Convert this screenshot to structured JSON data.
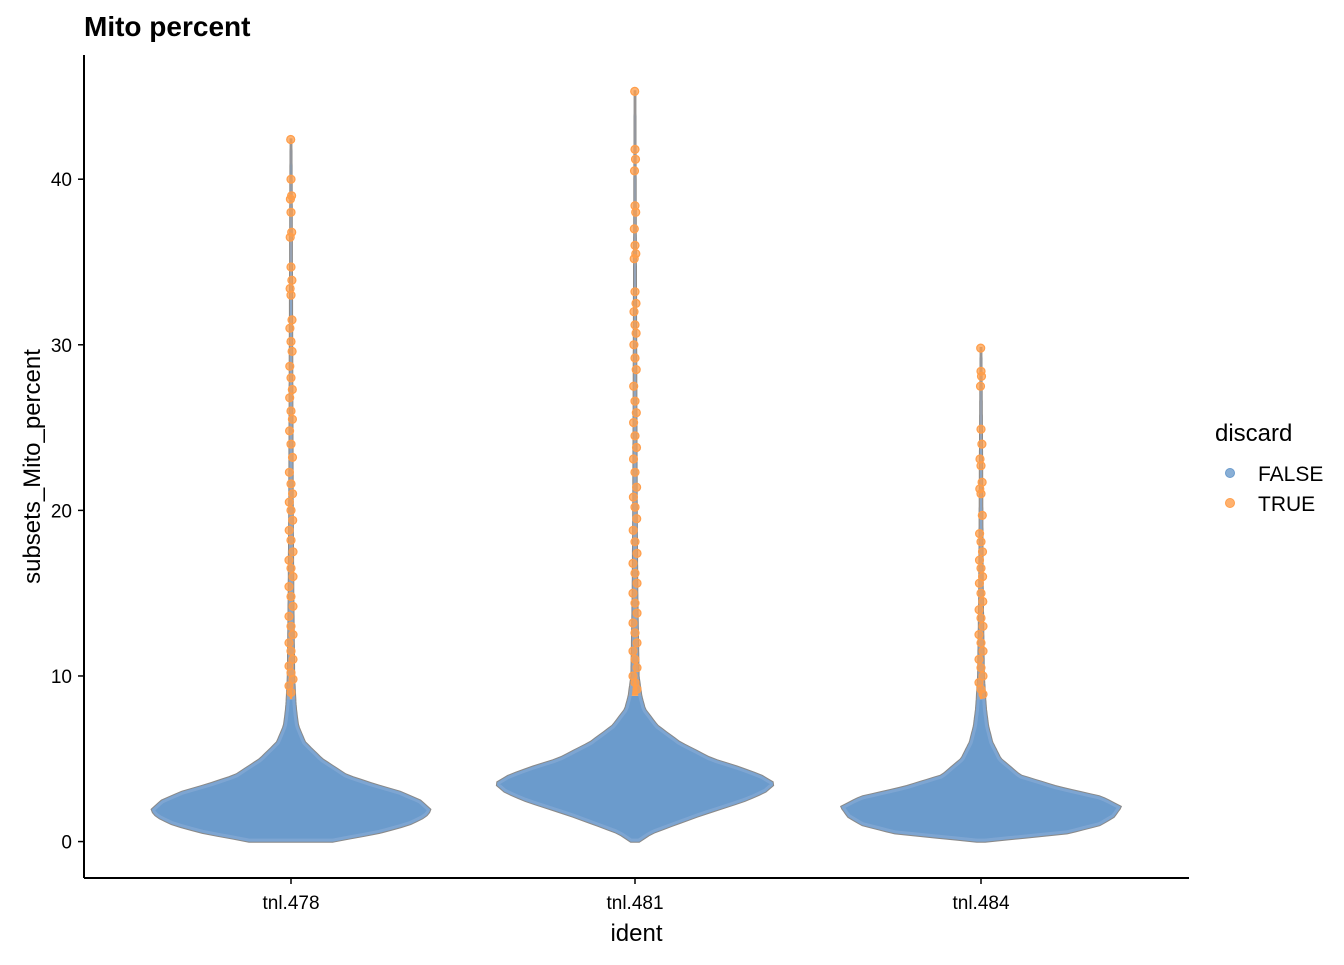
{
  "chart_data": {
    "type": "violin",
    "title": "Mito percent",
    "xlabel": "ident",
    "ylabel": "subsets_Mito_percent",
    "categories": [
      "tnl.478",
      "tnl.481",
      "tnl.484"
    ],
    "ylim": [
      -2.2,
      47.5
    ],
    "yticks": [
      0,
      10,
      20,
      30,
      40
    ],
    "grid": false,
    "legend": {
      "title": "discard",
      "position": "right",
      "entries": [
        {
          "label": "FALSE",
          "color": "#6b9bcc"
        },
        {
          "label": "TRUE",
          "color": "#ff9e4a"
        }
      ]
    },
    "threshold": {
      "tnl.478": 8.6,
      "tnl.481": 8.8,
      "tnl.484": 8.6
    },
    "violins": [
      {
        "category": "tnl.478",
        "max": 42.4,
        "profile": [
          [
            0.0,
            0.3
          ],
          [
            0.5,
            0.62
          ],
          [
            1.0,
            0.84
          ],
          [
            1.5,
            0.96
          ],
          [
            1.9,
            1.0
          ],
          [
            2.5,
            0.92
          ],
          [
            3.0,
            0.78
          ],
          [
            3.5,
            0.58
          ],
          [
            4.0,
            0.4
          ],
          [
            5.0,
            0.22
          ],
          [
            6.0,
            0.1
          ],
          [
            7.0,
            0.05
          ],
          [
            8.0,
            0.035
          ],
          [
            8.6,
            0.03
          ],
          [
            10.0,
            0.022
          ],
          [
            15.0,
            0.016
          ],
          [
            20.0,
            0.012
          ],
          [
            25.0,
            0.01
          ],
          [
            30.0,
            0.008
          ],
          [
            35.0,
            0.006
          ],
          [
            40.0,
            0.004
          ],
          [
            42.4,
            0.002
          ]
        ]
      },
      {
        "category": "tnl.481",
        "max": 45.3,
        "profile": [
          [
            0.0,
            0.03
          ],
          [
            0.5,
            0.12
          ],
          [
            1.0,
            0.28
          ],
          [
            1.5,
            0.44
          ],
          [
            2.0,
            0.62
          ],
          [
            2.5,
            0.8
          ],
          [
            3.0,
            0.93
          ],
          [
            3.5,
            1.0
          ],
          [
            4.0,
            0.9
          ],
          [
            4.5,
            0.74
          ],
          [
            5.0,
            0.55
          ],
          [
            6.0,
            0.32
          ],
          [
            7.0,
            0.16
          ],
          [
            8.0,
            0.07
          ],
          [
            8.8,
            0.045
          ],
          [
            10.0,
            0.025
          ],
          [
            15.0,
            0.016
          ],
          [
            20.0,
            0.012
          ],
          [
            25.0,
            0.01
          ],
          [
            30.0,
            0.008
          ],
          [
            35.0,
            0.006
          ],
          [
            40.0,
            0.004
          ],
          [
            45.3,
            0.002
          ]
        ]
      },
      {
        "category": "tnl.484",
        "max": 29.8,
        "profile": [
          [
            0.0,
            0.03
          ],
          [
            0.5,
            0.62
          ],
          [
            1.0,
            0.85
          ],
          [
            1.5,
            0.95
          ],
          [
            2.1,
            1.0
          ],
          [
            2.7,
            0.86
          ],
          [
            3.3,
            0.55
          ],
          [
            4.0,
            0.28
          ],
          [
            5.0,
            0.14
          ],
          [
            6.0,
            0.08
          ],
          [
            7.0,
            0.05
          ],
          [
            8.0,
            0.035
          ],
          [
            8.6,
            0.03
          ],
          [
            10.0,
            0.02
          ],
          [
            15.0,
            0.012
          ],
          [
            20.0,
            0.009
          ],
          [
            25.0,
            0.006
          ],
          [
            29.8,
            0.002
          ]
        ]
      }
    ],
    "true_points": [
      {
        "category": "tnl.478",
        "y": [
          42.4,
          40.0,
          39.0,
          38.8,
          38.0,
          36.8,
          36.5,
          34.7,
          33.9,
          33.4,
          33.0,
          31.5,
          31.0,
          30.2,
          29.6,
          28.7,
          28.0,
          27.3,
          26.8,
          26.0,
          25.5,
          24.8,
          24.0,
          23.2,
          22.3,
          21.6,
          21.0,
          20.5,
          20.0,
          19.4,
          18.8,
          18.2,
          17.5,
          17.0,
          16.5,
          16.0,
          15.4,
          14.8,
          14.2,
          13.6,
          13.0,
          12.5,
          12.0,
          11.5,
          11.0,
          10.6,
          10.2,
          9.8,
          9.4,
          9.0
        ]
      },
      {
        "category": "tnl.481",
        "y": [
          45.3,
          41.8,
          41.2,
          40.5,
          38.4,
          38.0,
          37.0,
          36.0,
          35.5,
          35.2,
          33.2,
          32.5,
          32.0,
          31.2,
          30.7,
          30.0,
          29.2,
          28.5,
          27.5,
          26.6,
          25.9,
          25.3,
          24.5,
          23.8,
          23.1,
          22.3,
          21.4,
          20.8,
          20.2,
          19.5,
          18.8,
          18.1,
          17.4,
          16.8,
          16.2,
          15.6,
          15.0,
          14.4,
          13.8,
          13.2,
          12.6,
          12.0,
          11.5,
          11.0,
          10.5,
          10.0,
          9.6,
          9.2
        ]
      },
      {
        "category": "tnl.484",
        "y": [
          29.8,
          28.4,
          28.1,
          27.5,
          24.9,
          24.0,
          23.1,
          22.7,
          21.7,
          21.3,
          21.0,
          19.7,
          18.6,
          18.1,
          17.5,
          17.0,
          16.5,
          16.0,
          15.6,
          15.0,
          14.5,
          14.0,
          13.5,
          13.0,
          12.5,
          12.0,
          11.5,
          11.0,
          10.5,
          10.0,
          9.6,
          9.2,
          8.9
        ]
      }
    ]
  }
}
